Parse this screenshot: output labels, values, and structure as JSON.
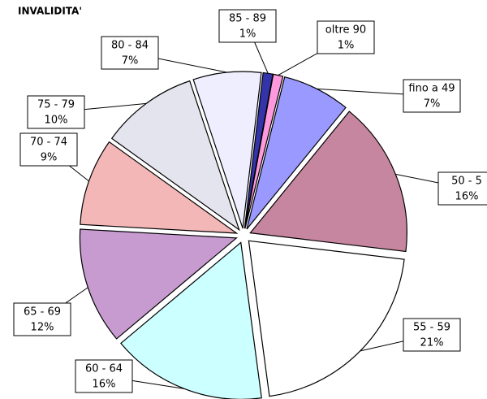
{
  "chart_data": {
    "type": "pie",
    "title": "INVALIDITA'",
    "categories": [
      "fino a 49",
      "50 - 5",
      "55 - 59",
      "60 - 64",
      "65 - 69",
      "70 - 74",
      "75 - 79",
      "80 - 84",
      "85 - 89",
      "oltre 90"
    ],
    "values": [
      7,
      16,
      21,
      16,
      12,
      9,
      10,
      7,
      1,
      1
    ],
    "value_labels": [
      "7%",
      "16%",
      "21%",
      "16%",
      "12%",
      "9%",
      "10%",
      "7%",
      "1%",
      "1%"
    ],
    "colors": [
      "#9999ff",
      "#c7869f",
      "#ffffff",
      "#ccffff",
      "#c79bd0",
      "#f3b7b7",
      "#e4e4ee",
      "#eeeeff",
      "#3333aa",
      "#ff99dd"
    ]
  }
}
